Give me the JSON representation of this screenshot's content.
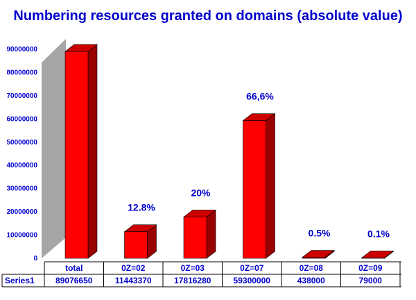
{
  "chart_data": {
    "type": "bar",
    "title": "Numbering resources granted on domains (absolute value)",
    "categories": [
      "total",
      "0Z=02",
      "0Z=03",
      "0Z=07",
      "0Z=08",
      "0Z=09"
    ],
    "series": [
      {
        "name": "Series1",
        "values": [
          89076650,
          11443370,
          17816280,
          59300000,
          438000,
          79000
        ]
      }
    ],
    "data_labels": [
      "",
      "12.8%",
      "20%",
      "66,6%",
      "0.5%",
      "0.1%"
    ],
    "table_values": [
      "89076650",
      "11443370",
      "17816280",
      "59300000",
      "438000",
      "79000"
    ],
    "ytick_labels": [
      "0",
      "10000000",
      "20000000",
      "30000000",
      "40000000",
      "50000000",
      "60000000",
      "70000000",
      "80000000",
      "90000000"
    ],
    "ylim": [
      0,
      90000000
    ],
    "xlabel": "",
    "ylabel": "",
    "grid": false,
    "legend": "none",
    "data_table": true,
    "bar_style": "3d",
    "colors": {
      "bar_front": "#ff0000",
      "bar_side": "#990000",
      "bar_top": "#cc0000",
      "wall": "#a6a6a6",
      "text": "#0000cc"
    }
  }
}
